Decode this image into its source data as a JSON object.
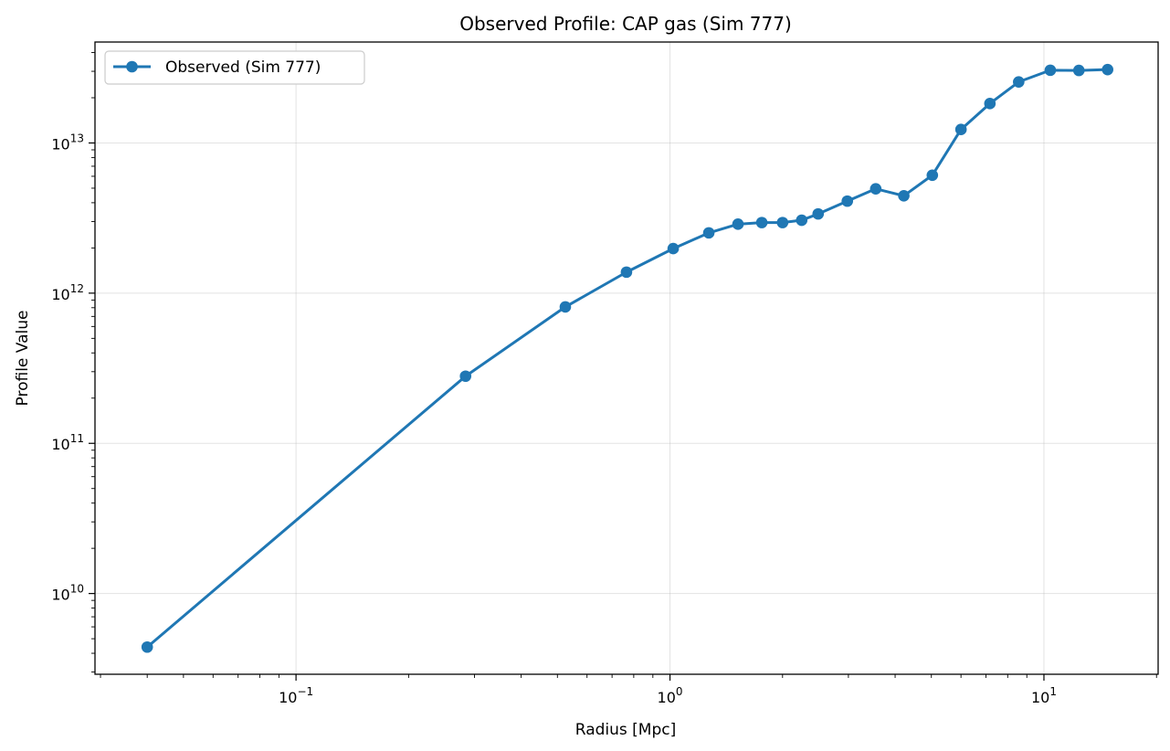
{
  "chart_data": {
    "type": "line",
    "title": "Observed Profile: CAP gas (Sim 777)",
    "xlabel": "Radius [Mpc]",
    "ylabel": "Profile Value",
    "xscale": "log",
    "yscale": "log",
    "xlim": [
      0.029,
      20.2
    ],
    "ylim": [
      2900000000.0,
      47000000000000.0
    ],
    "grid": true,
    "legend_position": "top-left",
    "x_ticks": [
      {
        "value": 0.1,
        "base": "10",
        "exp": "−1"
      },
      {
        "value": 1,
        "base": "10",
        "exp": "0"
      },
      {
        "value": 10,
        "base": "10",
        "exp": "1"
      }
    ],
    "y_ticks": [
      {
        "value": 10000000000.0,
        "base": "10",
        "exp": "10"
      },
      {
        "value": 100000000000.0,
        "base": "10",
        "exp": "11"
      },
      {
        "value": 1000000000000.0,
        "base": "10",
        "exp": "12"
      },
      {
        "value": 10000000000000.0,
        "base": "10",
        "exp": "13"
      }
    ],
    "series": [
      {
        "name": "Observed (Sim 777)",
        "color": "#1f77b4",
        "marker": "circle",
        "x": [
          0.04,
          0.284,
          0.525,
          0.765,
          1.02,
          1.27,
          1.52,
          1.76,
          2.0,
          2.25,
          2.49,
          2.98,
          3.55,
          4.22,
          5.03,
          6.0,
          7.17,
          8.56,
          10.4,
          12.4,
          14.8
        ],
        "y": [
          4400000000.0,
          280000000000.0,
          810000000000.0,
          1380000000000.0,
          1980000000000.0,
          2520000000000.0,
          2880000000000.0,
          2950000000000.0,
          2950000000000.0,
          3060000000000.0,
          3370000000000.0,
          4100000000000.0,
          4950000000000.0,
          4450000000000.0,
          6100000000000.0,
          12300000000000.0,
          18300000000000.0,
          25500000000000.0,
          30500000000000.0,
          30400000000000.0,
          30800000000000.0
        ]
      }
    ]
  }
}
